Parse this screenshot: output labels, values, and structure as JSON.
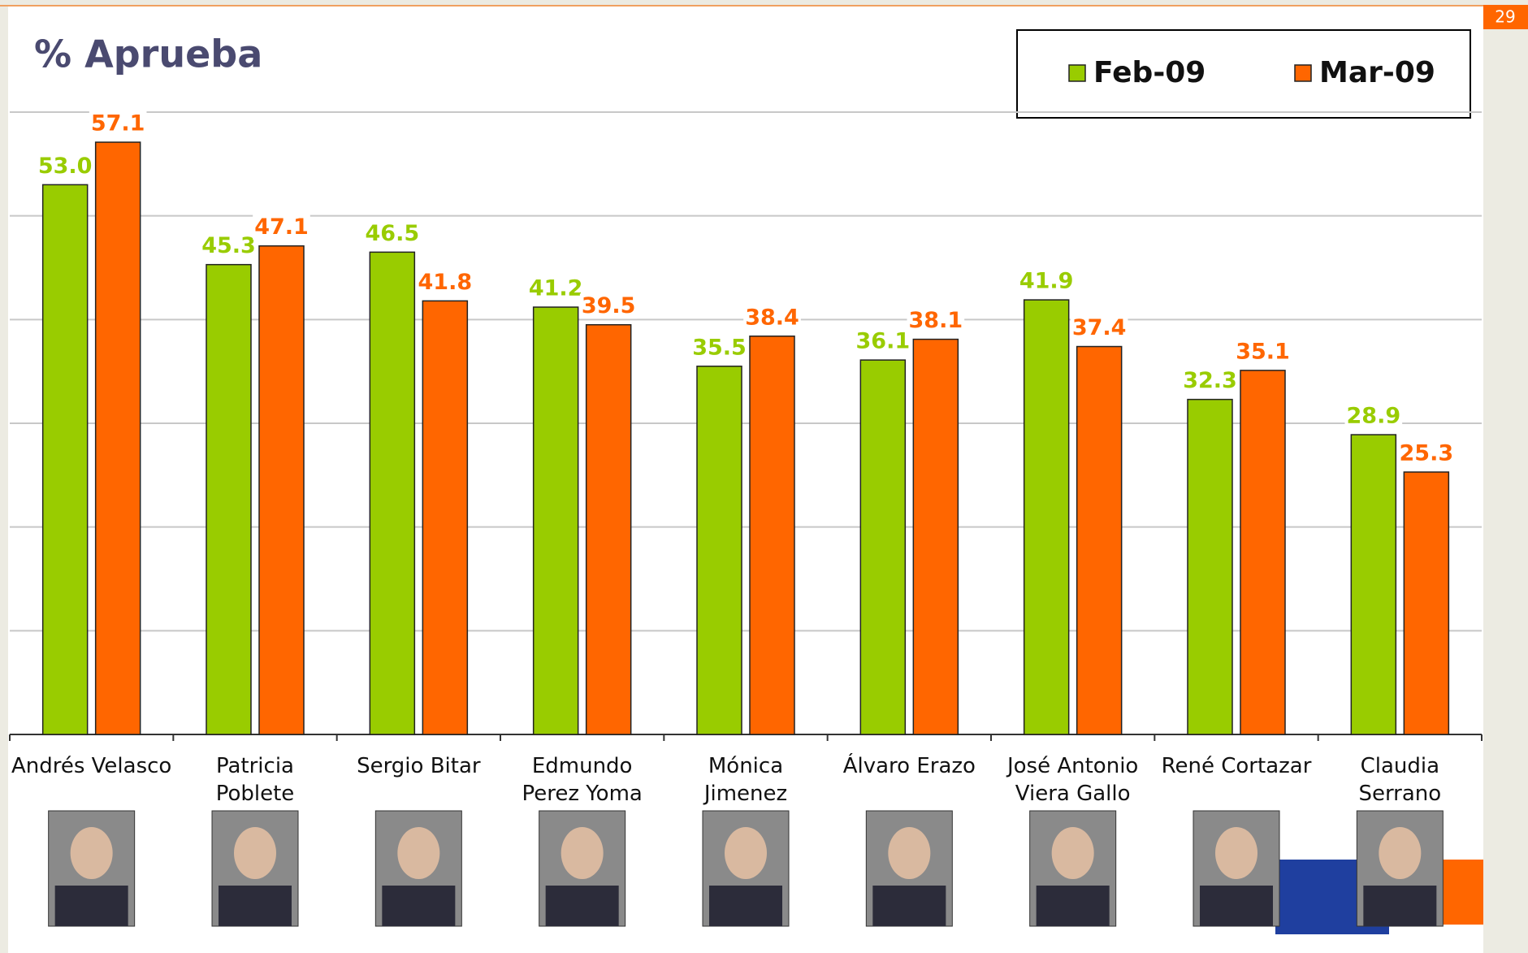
{
  "page_number": "29",
  "chart_data": {
    "type": "bar",
    "title": "% Aprueba",
    "categories": [
      "Andrés Velasco",
      "Patricia Poblete",
      "Sergio Bitar",
      "Edmundo\nPerez Yoma",
      "Mónica Jimenez",
      "Álvaro Erazo",
      "José Antonio\nViera Gallo",
      "René Cortazar",
      "Claudia Serrano"
    ],
    "series": [
      {
        "name": "Feb-09",
        "color": "#99cc00",
        "values": [
          53.0,
          45.3,
          46.5,
          41.2,
          35.5,
          36.1,
          41.9,
          32.3,
          28.9
        ],
        "value_labels": [
          "53.0",
          "45.3",
          "46.5",
          "41.2",
          "35.5",
          "36.1",
          "41.9",
          "32.3",
          "28.9"
        ]
      },
      {
        "name": "Mar-09",
        "color": "#ff6600",
        "values": [
          57.1,
          47.1,
          41.8,
          39.5,
          38.4,
          38.1,
          37.4,
          35.1,
          25.3
        ],
        "value_labels": [
          "57.1",
          "47.1",
          "41.8",
          "39.5",
          "38.4",
          "38.1",
          "37.4",
          "35.1",
          "25.3"
        ]
      }
    ],
    "ylim": [
      0,
      60
    ],
    "yticks": [
      0,
      10,
      20,
      30,
      40,
      50,
      60
    ],
    "grid": true,
    "legend": "top-right"
  }
}
